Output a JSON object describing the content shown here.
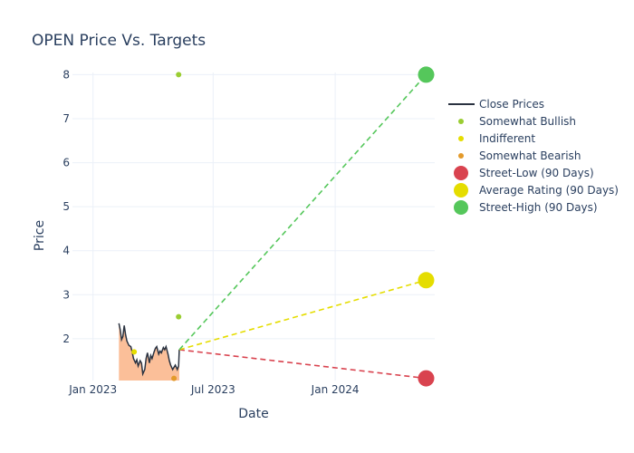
{
  "chart_data": {
    "type": "line",
    "title": "OPEN Price Vs. Targets",
    "xlabel": "Date",
    "ylabel": "Price",
    "x_tick_labels": [
      {
        "label": "Jan 2023",
        "date": "2023-01-01"
      },
      {
        "label": "Jul 2023",
        "date": "2023-07-01"
      },
      {
        "label": "Jan 2024",
        "date": "2024-01-01"
      }
    ],
    "y_ticks": [
      2,
      3,
      4,
      5,
      6,
      7,
      8
    ],
    "xlim": [
      "2022-12-01",
      "2024-05-30"
    ],
    "ylim": [
      1.05,
      8.05
    ],
    "grid": true,
    "legend_position": "right",
    "colors": {
      "close": "#2a3240",
      "fill": "#fbbf99",
      "somewhat_bullish": "#9acd32",
      "indifferent": "#e5dd00",
      "somewhat_bearish": "#e39a2a",
      "street_low": "#d9434f",
      "average": "#e5dd00",
      "street_high": "#55c75b"
    },
    "close_prices": {
      "name": "Close Prices",
      "points": [
        [
          "2023-02-09",
          2.35
        ],
        [
          "2023-02-11",
          2.2
        ],
        [
          "2023-02-13",
          1.98
        ],
        [
          "2023-02-15",
          2.05
        ],
        [
          "2023-02-17",
          2.3
        ],
        [
          "2023-02-19",
          2.1
        ],
        [
          "2023-02-21",
          1.95
        ],
        [
          "2023-02-24",
          1.85
        ],
        [
          "2023-02-27",
          1.82
        ],
        [
          "2023-03-01",
          1.7
        ],
        [
          "2023-03-03",
          1.55
        ],
        [
          "2023-03-06",
          1.45
        ],
        [
          "2023-03-08",
          1.52
        ],
        [
          "2023-03-10",
          1.38
        ],
        [
          "2023-03-13",
          1.5
        ],
        [
          "2023-03-15",
          1.45
        ],
        [
          "2023-03-17",
          1.2
        ],
        [
          "2023-03-20",
          1.3
        ],
        [
          "2023-03-22",
          1.55
        ],
        [
          "2023-03-24",
          1.68
        ],
        [
          "2023-03-27",
          1.45
        ],
        [
          "2023-03-29",
          1.62
        ],
        [
          "2023-03-31",
          1.55
        ],
        [
          "2023-04-03",
          1.7
        ],
        [
          "2023-04-05",
          1.78
        ],
        [
          "2023-04-07",
          1.82
        ],
        [
          "2023-04-10",
          1.65
        ],
        [
          "2023-04-12",
          1.72
        ],
        [
          "2023-04-14",
          1.68
        ],
        [
          "2023-04-17",
          1.8
        ],
        [
          "2023-04-19",
          1.75
        ],
        [
          "2023-04-21",
          1.82
        ],
        [
          "2023-04-24",
          1.65
        ],
        [
          "2023-04-26",
          1.5
        ],
        [
          "2023-04-28",
          1.4
        ],
        [
          "2023-05-01",
          1.3
        ],
        [
          "2023-05-03",
          1.35
        ],
        [
          "2023-05-05",
          1.4
        ],
        [
          "2023-05-08",
          1.3
        ],
        [
          "2023-05-10",
          1.38
        ],
        [
          "2023-05-11",
          1.75
        ]
      ]
    },
    "analyst_ratings": [
      {
        "name": "Somewhat Bullish",
        "points": [
          [
            "2023-05-10",
            8.0
          ],
          [
            "2023-05-10",
            2.5
          ]
        ]
      },
      {
        "name": "Indifferent",
        "points": [
          [
            "2023-03-04",
            1.7
          ]
        ]
      },
      {
        "name": "Somewhat Bearish",
        "points": [
          [
            "2023-05-03",
            1.1
          ]
        ]
      }
    ],
    "targets": [
      {
        "name": "Street-Low (90 Days)",
        "start": [
          "2023-05-11",
          1.75
        ],
        "end": [
          "2024-05-17",
          1.1
        ]
      },
      {
        "name": "Average Rating (90 Days)",
        "start": [
          "2023-05-11",
          1.75
        ],
        "end": [
          "2024-05-17",
          3.33
        ]
      },
      {
        "name": "Street-High (90 Days)",
        "start": [
          "2023-05-11",
          1.75
        ],
        "end": [
          "2024-05-17",
          8.0
        ]
      }
    ],
    "legend": [
      {
        "label": "Close Prices",
        "kind": "line",
        "color_key": "close"
      },
      {
        "label": "Somewhat Bullish",
        "kind": "small-dot",
        "color_key": "somewhat_bullish"
      },
      {
        "label": "Indifferent",
        "kind": "small-dot",
        "color_key": "indifferent"
      },
      {
        "label": "Somewhat Bearish",
        "kind": "small-dot",
        "color_key": "somewhat_bearish"
      },
      {
        "label": "Street-Low (90 Days)",
        "kind": "big-dot",
        "color_key": "street_low"
      },
      {
        "label": "Average Rating (90 Days)",
        "kind": "big-dot",
        "color_key": "average"
      },
      {
        "label": "Street-High (90 Days)",
        "kind": "big-dot",
        "color_key": "street_high"
      }
    ]
  }
}
